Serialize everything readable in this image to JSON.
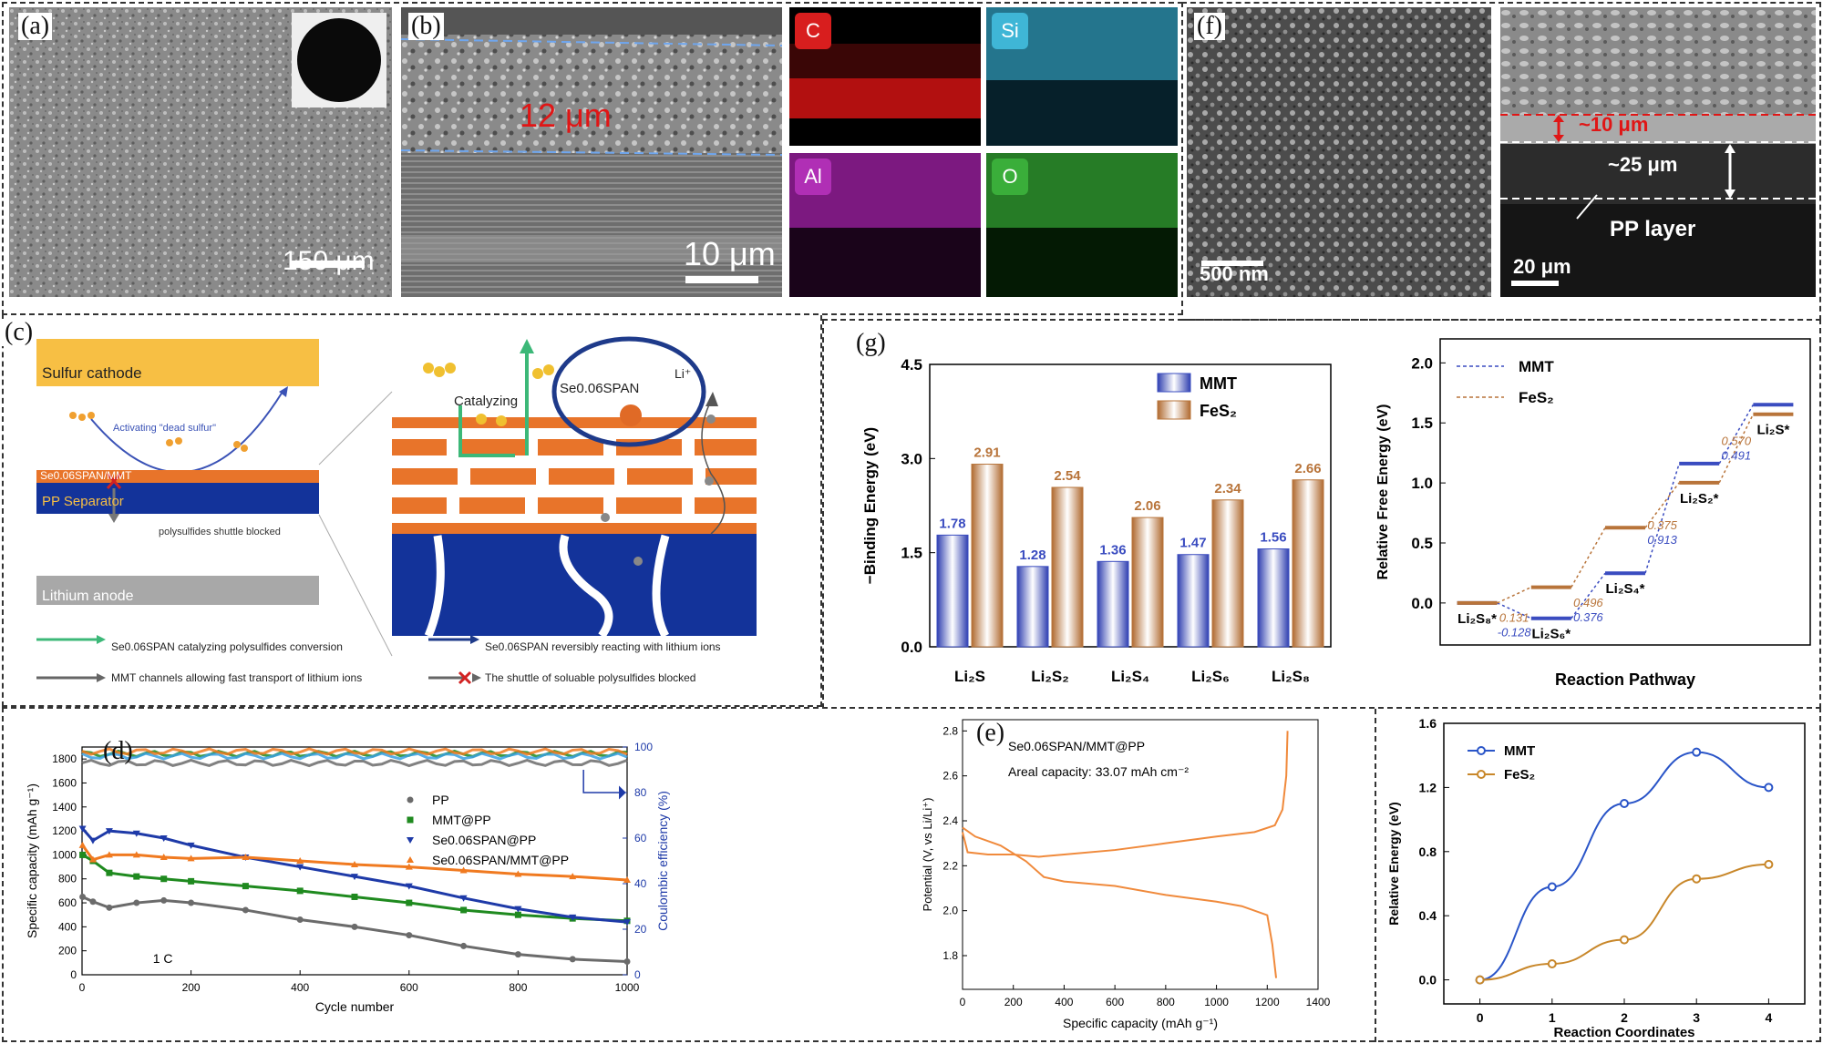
{
  "panel_labels": {
    "a": "(a)",
    "b": "(b)",
    "c": "(c)",
    "d": "(d)",
    "e": "(e)",
    "f": "(f)",
    "g": "(g)"
  },
  "panel_a": {
    "scale": "150 μm"
  },
  "panel_b": {
    "thickness": "12 μm",
    "scale": "10 μm",
    "edx": [
      {
        "label": "C",
        "color": "#d81e1e"
      },
      {
        "label": "Si",
        "color": "#3fb6d6"
      },
      {
        "label": "Al",
        "color": "#b02fb5"
      },
      {
        "label": "O",
        "color": "#3aae3a"
      }
    ]
  },
  "panel_f": {
    "scale_left": "500 nm",
    "scale_right": "20 μm",
    "coat": "~10 μm",
    "pp_thick": "~25 μm",
    "pp_layer": "PP layer"
  },
  "panel_c": {
    "sulfur_cathode": "Sulfur cathode",
    "activating": "Activating \"dead sulfur\"",
    "membrane": "Se0.06SPAN/MMT",
    "separator": "PP Separator",
    "blocked": "polysulfides shuttle blocked",
    "anode": "Lithium anode",
    "catalyzing": "Catalyzing",
    "sespan": "Se0.06SPAN",
    "li": "Li⁺",
    "legend": [
      {
        "text": "Se0.06SPAN catalyzing polysulfides conversion",
        "color": "#3cb878"
      },
      {
        "text": "Se0.06SPAN reversibly reacting with lithium ions",
        "color": "#1e3a8a"
      },
      {
        "text": "MMT channels allowing fast transport of lithium ions",
        "color": "#666666"
      },
      {
        "text": "The shuttle of soluable polysulfides blocked",
        "color": "#d22222"
      }
    ]
  },
  "panel_d": {
    "chart_data": {
      "type": "scatter",
      "xlabel": "Cycle number",
      "ylabel": "Specific capacity (mAh g⁻¹)",
      "y2label": "Coulombic efficiency (%)",
      "xlim": [
        0,
        1000
      ],
      "ylim": [
        0,
        1900
      ],
      "y2lim": [
        0,
        100
      ],
      "xticks": [
        0,
        200,
        400,
        600,
        800,
        1000
      ],
      "yticks": [
        0,
        200,
        400,
        600,
        800,
        1000,
        1200,
        1400,
        1600,
        1800
      ],
      "y2ticks": [
        0,
        20,
        40,
        60,
        80,
        100
      ],
      "annotation": "1 C",
      "series": [
        {
          "name": "PP",
          "color": "#6b6b6b",
          "x": [
            1,
            20,
            50,
            100,
            150,
            200,
            300,
            400,
            500,
            600,
            700,
            800,
            900,
            1000
          ],
          "y": [
            650,
            610,
            560,
            600,
            620,
            600,
            540,
            460,
            400,
            330,
            240,
            170,
            130,
            110
          ]
        },
        {
          "name": "MMT@PP",
          "color": "#1f8a1f",
          "x": [
            1,
            20,
            50,
            100,
            150,
            200,
            300,
            400,
            500,
            600,
            700,
            800,
            900,
            1000
          ],
          "y": [
            1000,
            950,
            850,
            820,
            800,
            780,
            740,
            700,
            650,
            600,
            540,
            500,
            470,
            450
          ]
        },
        {
          "name": "Se0.06SPAN@PP",
          "color": "#1e3aa8",
          "x": [
            1,
            20,
            50,
            100,
            150,
            200,
            300,
            400,
            500,
            600,
            700,
            800,
            900,
            1000
          ],
          "y": [
            1220,
            1120,
            1200,
            1180,
            1140,
            1080,
            980,
            900,
            820,
            740,
            640,
            550,
            480,
            440
          ]
        },
        {
          "name": "Se0.06SPAN/MMT@PP",
          "color": "#f07a20",
          "x": [
            1,
            20,
            50,
            100,
            150,
            200,
            300,
            400,
            500,
            600,
            700,
            800,
            900,
            1000
          ],
          "y": [
            1080,
            960,
            1000,
            1000,
            980,
            970,
            980,
            950,
            920,
            900,
            870,
            840,
            820,
            790
          ]
        }
      ]
    },
    "legend_labels": [
      "PP",
      "MMT@PP",
      "Se0.06SPAN@PP",
      "Se0.06SPAN/MMT@PP"
    ]
  },
  "panel_e": {
    "chart_data": {
      "type": "line",
      "xlabel": "Specific capacity (mAh g⁻¹)",
      "ylabel": "Potential (V, vs Li/Li⁺)",
      "xlim": [
        0,
        1400
      ],
      "ylim": [
        1.65,
        2.85
      ],
      "xticks": [
        0,
        200,
        400,
        600,
        800,
        1000,
        1200,
        1400
      ],
      "yticks": [
        1.8,
        2.0,
        2.2,
        2.4,
        2.6,
        2.8
      ],
      "title": "Se0.06SPAN/MMT@PP",
      "subtitle": "Areal capacity: 33.07 mAh cm⁻²",
      "series": [
        {
          "name": "charge",
          "color": "#f08a3c",
          "x": [
            0,
            20,
            100,
            200,
            300,
            400,
            600,
            800,
            1000,
            1150,
            1230,
            1260,
            1275,
            1280
          ],
          "y": [
            2.35,
            2.26,
            2.25,
            2.25,
            2.24,
            2.25,
            2.27,
            2.3,
            2.33,
            2.35,
            2.38,
            2.45,
            2.6,
            2.8
          ]
        },
        {
          "name": "discharge",
          "color": "#f08a3c",
          "x": [
            0,
            50,
            150,
            250,
            320,
            400,
            600,
            800,
            1000,
            1100,
            1200,
            1220,
            1235
          ],
          "y": [
            2.37,
            2.33,
            2.29,
            2.22,
            2.15,
            2.13,
            2.11,
            2.07,
            2.04,
            2.02,
            1.98,
            1.85,
            1.7
          ]
        }
      ]
    }
  },
  "panel_g1": {
    "chart_data": {
      "type": "bar",
      "ylabel": "−Binding Energy (eV)",
      "ylim": [
        0,
        4.5
      ],
      "yticks": [
        0.0,
        1.5,
        3.0,
        4.5
      ],
      "categories": [
        "Li₂S",
        "Li₂S₂",
        "Li₂S₄",
        "Li₂S₆",
        "Li₂S₈"
      ],
      "series": [
        {
          "name": "MMT",
          "color": "#3a4cc0",
          "values": [
            1.78,
            1.28,
            1.36,
            1.47,
            1.56
          ],
          "labels": [
            "1.78",
            "1.28",
            "1.36",
            "1.47",
            "1.56"
          ]
        },
        {
          "name": "FeS₂",
          "color": "#b8743a",
          "values": [
            2.91,
            2.54,
            2.06,
            2.34,
            2.66
          ],
          "labels": [
            "2.91",
            "2.54",
            "2.06",
            "2.34",
            "2.66"
          ]
        }
      ]
    }
  },
  "panel_g2": {
    "chart_data": {
      "type": "line",
      "xlabel": "Reaction Pathway",
      "ylabel": "Relative Free Energy (eV)",
      "ylim": [
        -0.35,
        2.2
      ],
      "yticks": [
        0.0,
        0.5,
        1.0,
        1.5,
        2.0
      ],
      "categories": [
        "Li₂S₈*",
        "Li₂S₆*",
        "Li₂S₄*",
        "Li₂S₂*",
        "Li₂S*"
      ],
      "series": [
        {
          "name": "MMT",
          "color": "#3a4cc0",
          "values": [
            0.0,
            -0.128,
            0.248,
            1.161,
            1.652
          ]
        },
        {
          "name": "FeS₂",
          "color": "#b8743a",
          "values": [
            0.0,
            0.131,
            0.627,
            1.002,
            1.572
          ]
        }
      ],
      "step_labels": [
        {
          "mmt": "-0.128",
          "fes2": "0.131"
        },
        {
          "mmt": "0.376",
          "fes2": "0.496"
        },
        {
          "mmt": "0.913",
          "fes2": "0.375"
        },
        {
          "mmt": "0.491",
          "fes2": "0.570"
        }
      ]
    }
  },
  "panel_g3": {
    "chart_data": {
      "type": "line",
      "xlabel": "Reaction Coordinates",
      "ylabel": "Relative Energy (eV)",
      "xlim": [
        -0.5,
        4.5
      ],
      "ylim": [
        -0.15,
        1.6
      ],
      "xticks": [
        0,
        1,
        2,
        3,
        4
      ],
      "yticks": [
        0.0,
        0.4,
        0.8,
        1.2,
        1.6
      ],
      "series": [
        {
          "name": "MMT",
          "color": "#2a55c8",
          "x": [
            0,
            1,
            2,
            3,
            4
          ],
          "y": [
            0.0,
            0.58,
            1.1,
            1.42,
            1.2
          ]
        },
        {
          "name": "FeS₂",
          "color": "#c8872a",
          "x": [
            0,
            1,
            2,
            3,
            4
          ],
          "y": [
            0.0,
            0.1,
            0.25,
            0.63,
            0.72
          ]
        }
      ]
    }
  }
}
